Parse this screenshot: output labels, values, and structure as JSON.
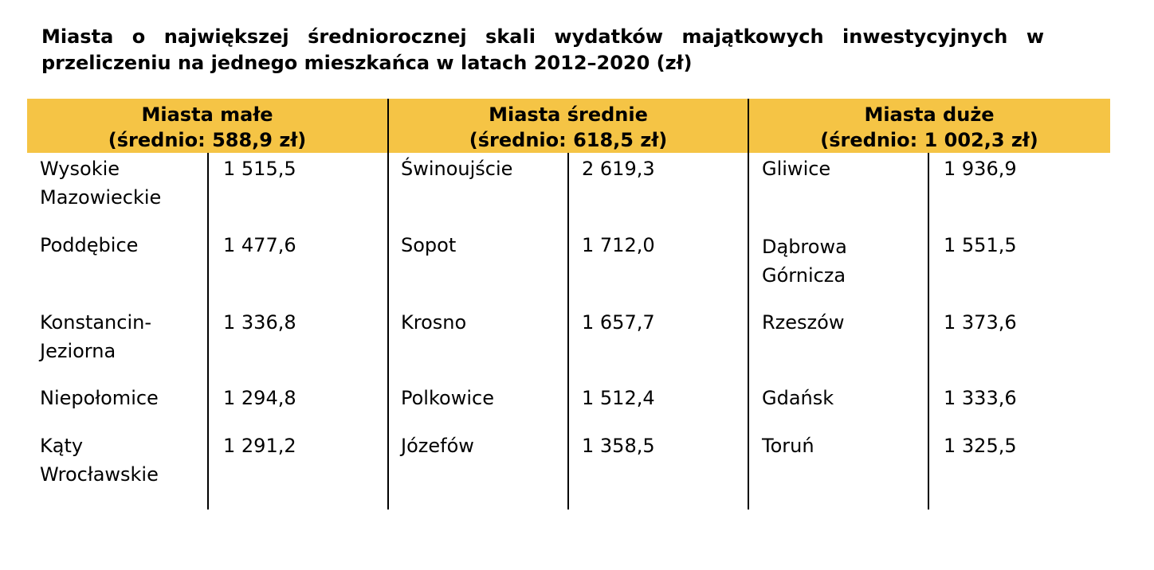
{
  "title": {
    "line1": "Miasta o największej średniorocznej skali wydatków majątkowych inwestycyjnych w",
    "line2": "przeliczeniu na jednego mieszkańca w latach 2012–2020 (zł)"
  },
  "groups": [
    {
      "name": "Miasta małe",
      "average": "(średnio: 588,9 zł)",
      "rows": [
        {
          "city": "Wysokie Mazowieckie",
          "value": "1 515,5"
        },
        {
          "city": "Poddębice",
          "value": "1 477,6"
        },
        {
          "city": "Konstancin-Jeziorna",
          "value": "1 336,8"
        },
        {
          "city": "Niepołomice",
          "value": "1 294,8"
        },
        {
          "city": "Kąty Wrocławskie",
          "value": "1 291,2"
        }
      ]
    },
    {
      "name": "Miasta średnie",
      "average": "(średnio: 618,5 zł)",
      "rows": [
        {
          "city": "Świnoujście",
          "value": "2 619,3"
        },
        {
          "city": "Sopot",
          "value": "1 712,0"
        },
        {
          "city": "Krosno",
          "value": "1 657,7"
        },
        {
          "city": "Polkowice",
          "value": "1 512,4"
        },
        {
          "city": "Józefów",
          "value": "1 358,5"
        }
      ]
    },
    {
      "name": "Miasta duże",
      "average": "(średnio: 1 002,3 zł)",
      "rows": [
        {
          "city": "Gliwice",
          "value": "1 936,9"
        },
        {
          "city": "Dąbrowa Górnicza",
          "value": "1 551,5"
        },
        {
          "city": "Rzeszów",
          "value": "1 373,6"
        },
        {
          "city": "Gdańsk",
          "value": "1 333,6"
        },
        {
          "city": "Toruń",
          "value": "1 325,5"
        }
      ]
    }
  ]
}
